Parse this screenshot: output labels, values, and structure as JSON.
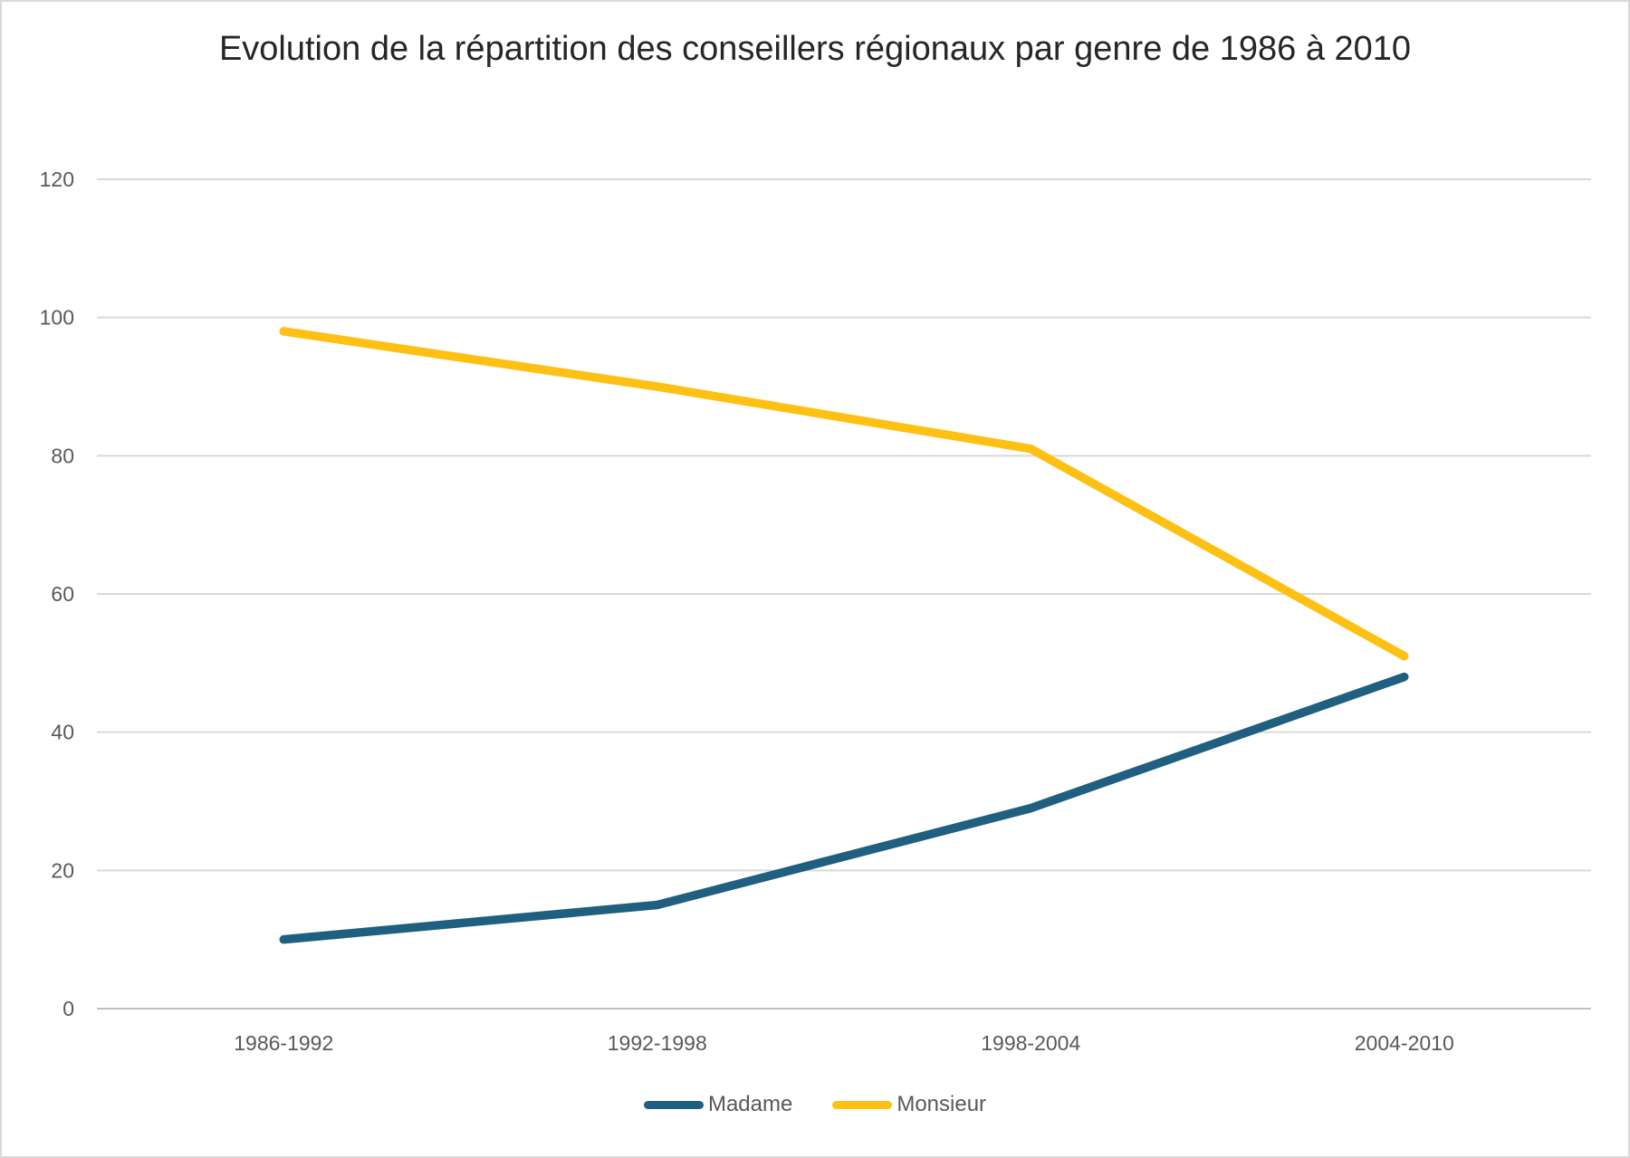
{
  "chart_data": {
    "type": "line",
    "title": "Evolution de la répartition des conseillers régionaux par genre de 1986 à 2010",
    "categories": [
      "1986-1992",
      "1992-1998",
      "1998-2004",
      "2004-2010"
    ],
    "series": [
      {
        "name": "Madame",
        "color": "#1F5F80",
        "values": [
          10,
          15,
          29,
          48
        ]
      },
      {
        "name": "Monsieur",
        "color": "#FDC013",
        "values": [
          98,
          90,
          81,
          51
        ]
      }
    ],
    "xlabel": "",
    "ylabel": "",
    "ylim": [
      0,
      120
    ],
    "ytick_step": 20,
    "ytick_labels": [
      "0",
      "20",
      "40",
      "60",
      "80",
      "100",
      "120"
    ],
    "grid": true,
    "legend_position": "bottom",
    "line_width": 9.5,
    "colors": {
      "gridline": "#D9D9D9",
      "axis_line": "#BFBFBF",
      "tick_label": "#595959",
      "title": "#262626",
      "background": "#FFFFFF",
      "border": "#D8D8D8"
    }
  }
}
